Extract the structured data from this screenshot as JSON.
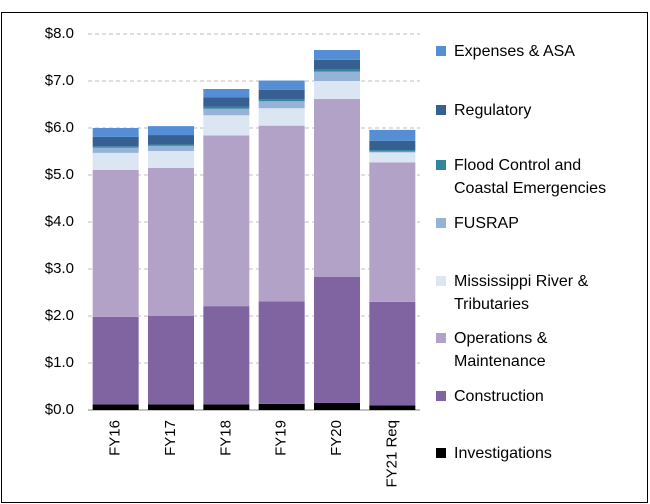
{
  "chart_data": {
    "type": "stacked_bar",
    "categories": [
      "FY16",
      "FY17",
      "FY18",
      "FY19",
      "FY20",
      "FY21 Req"
    ],
    "series": [
      {
        "name": "Investigations",
        "color": "#000000",
        "values": [
          0.12,
          0.12,
          0.12,
          0.13,
          0.15,
          0.1
        ]
      },
      {
        "name": "Construction",
        "color": "#8064a2",
        "values": [
          1.86,
          1.88,
          2.09,
          2.18,
          2.68,
          2.2
        ]
      },
      {
        "name": "Operations & Maintenance",
        "color": "#b3a2c7",
        "values": [
          3.13,
          3.15,
          3.63,
          3.74,
          3.79,
          2.97
        ]
      },
      {
        "name": "Mississippi River & Tributaries",
        "color": "#dce6f2",
        "values": [
          0.36,
          0.36,
          0.43,
          0.37,
          0.38,
          0.21
        ]
      },
      {
        "name": "FUSRAP",
        "color": "#95b3d7",
        "values": [
          0.11,
          0.11,
          0.14,
          0.15,
          0.2,
          0.02
        ]
      },
      {
        "name": "Flood Control and Coastal Emergencies",
        "color": "#31859c",
        "values": [
          0.03,
          0.03,
          0.04,
          0.04,
          0.04,
          0.03
        ]
      },
      {
        "name": "Regulatory",
        "color": "#366092",
        "values": [
          0.2,
          0.2,
          0.2,
          0.2,
          0.21,
          0.2
        ]
      },
      {
        "name": "Expenses & ASA",
        "color": "#558ed5",
        "values": [
          0.19,
          0.19,
          0.18,
          0.2,
          0.21,
          0.23
        ]
      }
    ],
    "ylim": [
      0,
      8
    ],
    "yticks": [
      {
        "value": 0,
        "label": "$0.0"
      },
      {
        "value": 1,
        "label": "$1.0"
      },
      {
        "value": 2,
        "label": "$2.0"
      },
      {
        "value": 3,
        "label": "$3.0"
      },
      {
        "value": 4,
        "label": "$4.0"
      },
      {
        "value": 5,
        "label": "$5.0"
      },
      {
        "value": 6,
        "label": "$6.0"
      },
      {
        "value": 7,
        "label": "$7.0"
      },
      {
        "value": 8,
        "label": "$8.0"
      }
    ],
    "grid": true
  }
}
